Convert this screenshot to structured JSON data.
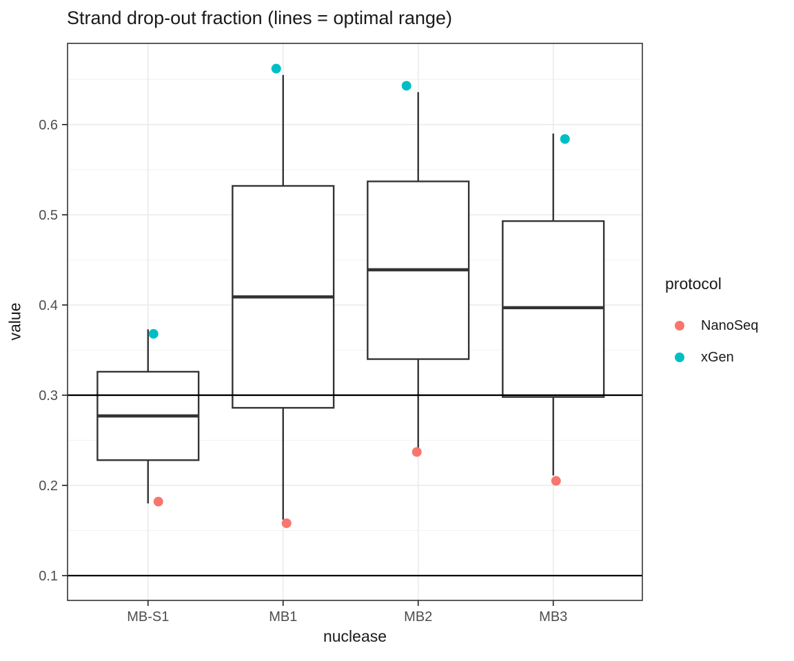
{
  "title": "Strand drop-out fraction (lines = optimal range)",
  "chart_data": {
    "type": "boxplot",
    "title": "Strand drop-out fraction (lines = optimal range)",
    "xlabel": "nuclease",
    "ylabel": "value",
    "categories": [
      "MB-S1",
      "MB1",
      "MB2",
      "MB3"
    ],
    "ylim": [
      0.0725,
      0.69
    ],
    "yticks": [
      0.1,
      0.2,
      0.3,
      0.4,
      0.5,
      0.6
    ],
    "ytick_labels": [
      "0.1",
      "0.2",
      "0.3",
      "0.4",
      "0.5",
      "0.6"
    ],
    "yticks_minor": [
      0.15,
      0.25,
      0.35,
      0.45,
      0.55,
      0.65
    ],
    "grid": true,
    "reference_lines": [
      0.1,
      0.3
    ],
    "boxes": [
      {
        "category": "MB-S1",
        "whisker_low": 0.18,
        "q1": 0.228,
        "median": 0.277,
        "q3": 0.326,
        "whisker_high": 0.373
      },
      {
        "category": "MB1",
        "whisker_low": 0.162,
        "q1": 0.286,
        "median": 0.409,
        "q3": 0.532,
        "whisker_high": 0.655
      },
      {
        "category": "MB2",
        "whisker_low": 0.241,
        "q1": 0.34,
        "median": 0.439,
        "q3": 0.537,
        "whisker_high": 0.636
      },
      {
        "category": "MB3",
        "whisker_low": 0.211,
        "q1": 0.298,
        "median": 0.397,
        "q3": 0.493,
        "whisker_high": 0.59
      }
    ],
    "points": [
      {
        "category": "MB-S1",
        "protocol": "NanoSeq",
        "value": 0.182,
        "x_jitter": 15
      },
      {
        "category": "MB-S1",
        "protocol": "xGen",
        "value": 0.368,
        "x_jitter": 8
      },
      {
        "category": "MB1",
        "protocol": "NanoSeq",
        "value": 0.158,
        "x_jitter": 5
      },
      {
        "category": "MB1",
        "protocol": "xGen",
        "value": 0.662,
        "x_jitter": -10
      },
      {
        "category": "MB2",
        "protocol": "NanoSeq",
        "value": 0.237,
        "x_jitter": -2
      },
      {
        "category": "MB2",
        "protocol": "xGen",
        "value": 0.643,
        "x_jitter": -17
      },
      {
        "category": "MB3",
        "protocol": "NanoSeq",
        "value": 0.205,
        "x_jitter": 4
      },
      {
        "category": "MB3",
        "protocol": "xGen",
        "value": 0.584,
        "x_jitter": 17
      }
    ],
    "legend": {
      "title": "protocol",
      "position": "right",
      "items": [
        {
          "label": "NanoSeq",
          "color": "#F8766D"
        },
        {
          "label": "xGen",
          "color": "#00BFC4"
        }
      ]
    },
    "colors": {
      "nanoseq": "#F8766D",
      "xgen": "#00BFC4",
      "box_stroke": "#333333",
      "median_stroke": "#333333",
      "reference_line": "#000000",
      "grid_major": "#E8E8E8",
      "grid_minor": "#F3F3F3",
      "panel_border": "#333333",
      "tick_mark": "#333333",
      "axis_text": "#4D4D4D",
      "panel_background": "#FFFFFF"
    }
  }
}
